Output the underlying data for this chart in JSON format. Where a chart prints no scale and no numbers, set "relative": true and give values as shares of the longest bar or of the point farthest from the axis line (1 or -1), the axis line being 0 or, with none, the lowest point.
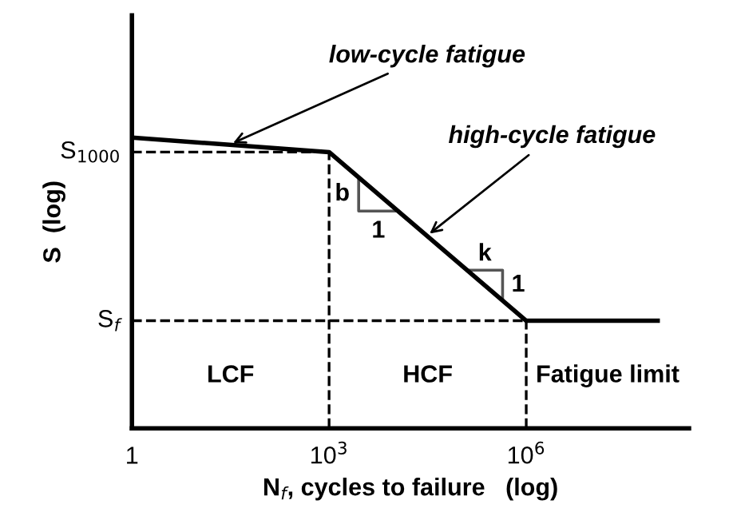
{
  "chart_data": {
    "type": "line",
    "relative": true,
    "log": "x",
    "xlabel": "N$_{f}$, cycles to failure   (log)",
    "ylabel": "S  (log)",
    "x": [
      1,
      1000,
      1000000,
      100000000
    ],
    "series": [
      {
        "color": "#000000",
        "values": [
          1,
          0.95,
          0.37,
          0.37
        ]
      }
    ],
    "xlim": [
      1,
      300000000
    ],
    "xticks": [
      1,
      {
        "value": 1000,
        "label": "10$^{3}$"
      },
      {
        "value": 1000000,
        "label": "10$^{6}$"
      }
    ],
    "ref_lines": [
      {
        "axis": "y",
        "value": 0.95,
        "label": "S$_{1000}$",
        "line_style": "dashed",
        "color": "#000000"
      },
      {
        "axis": "y",
        "value": 0.37,
        "label": "S$_{f}$",
        "line_style": "dashed",
        "color": "#000000"
      },
      {
        "axis": "x",
        "value": 1000,
        "line_style": "dashed",
        "color": "#000000"
      },
      {
        "axis": "x",
        "value": 1000000,
        "line_style": "dashed",
        "color": "#000000"
      }
    ],
    "annotations": [
      {
        "text": "low-cycle fatigue",
        "x": 30,
        "y": 0.975
      },
      {
        "text": "high-cycle fatigue",
        "x": 30000,
        "y": 0.66
      },
      "b",
      "1",
      "k",
      "1",
      "LCF",
      "HCF",
      "Fatigue limit"
    ],
    "grid": false,
    "marker": "none",
    "line_style": "solid"
  }
}
